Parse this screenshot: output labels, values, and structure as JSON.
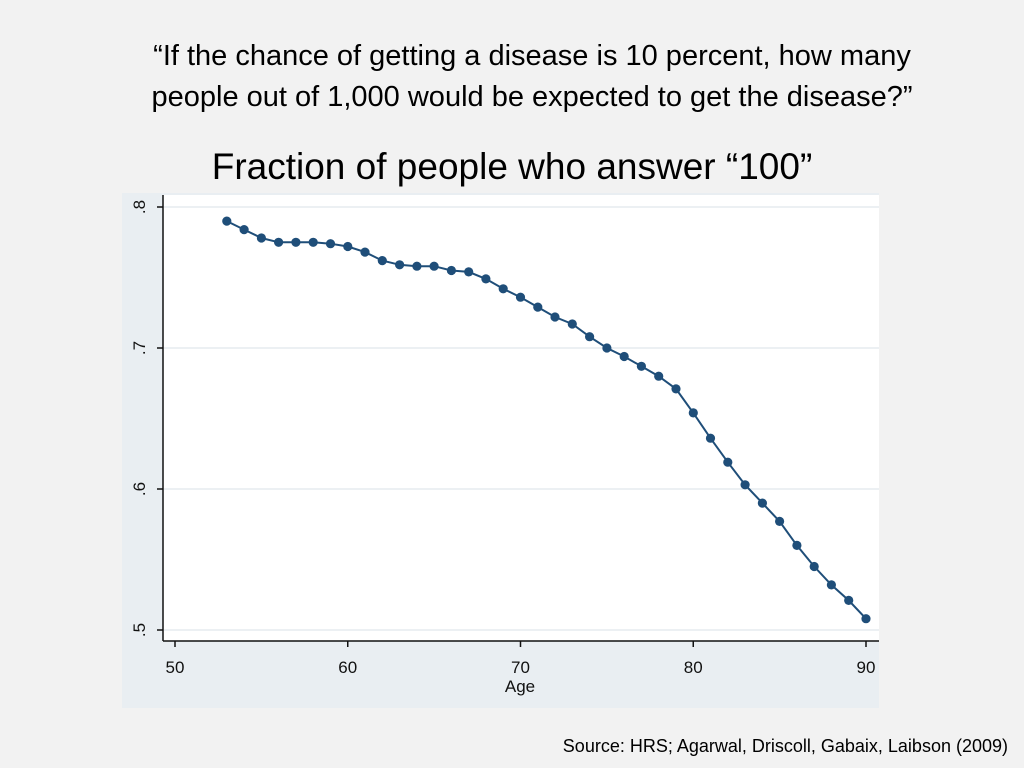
{
  "question": {
    "line1": "“If the chance of getting a disease is 10 percent, how many",
    "line2": "people out of 1,000 would be expected to get the disease?”"
  },
  "source": "Source: HRS; Agarwal, Driscoll, Gabaix, Laibson (2009)",
  "chart_data": {
    "type": "line",
    "title": "Fraction of people who answer “100”",
    "xlabel": "Age",
    "ylabel": "",
    "xlim": [
      50,
      90
    ],
    "ylim": [
      0.5,
      0.8
    ],
    "xticks": [
      50,
      60,
      70,
      80,
      90
    ],
    "yticks": [
      0.5,
      0.6,
      0.7,
      0.8
    ],
    "xtick_labels": [
      "50",
      "60",
      "70",
      "80",
      "90"
    ],
    "ytick_labels": [
      ".5",
      ".6",
      ".7",
      ".8"
    ],
    "grid": true,
    "series_color": "#1f4e79",
    "series": [
      {
        "x": [
          53,
          54,
          55,
          56,
          57,
          58,
          59,
          60,
          61,
          62,
          63,
          64,
          65,
          66,
          67,
          68,
          69,
          70,
          71,
          72,
          73,
          74,
          75,
          76,
          77,
          78,
          79,
          80,
          81,
          82,
          83,
          84,
          85,
          86,
          87,
          88,
          89,
          90
        ],
        "y": [
          0.79,
          0.784,
          0.778,
          0.775,
          0.775,
          0.775,
          0.774,
          0.772,
          0.768,
          0.762,
          0.759,
          0.758,
          0.758,
          0.755,
          0.754,
          0.749,
          0.742,
          0.736,
          0.729,
          0.722,
          0.717,
          0.708,
          0.7,
          0.694,
          0.687,
          0.68,
          0.671,
          0.654,
          0.636,
          0.619,
          0.603,
          0.59,
          0.577,
          0.56,
          0.545,
          0.532,
          0.521,
          0.508
        ]
      }
    ]
  }
}
